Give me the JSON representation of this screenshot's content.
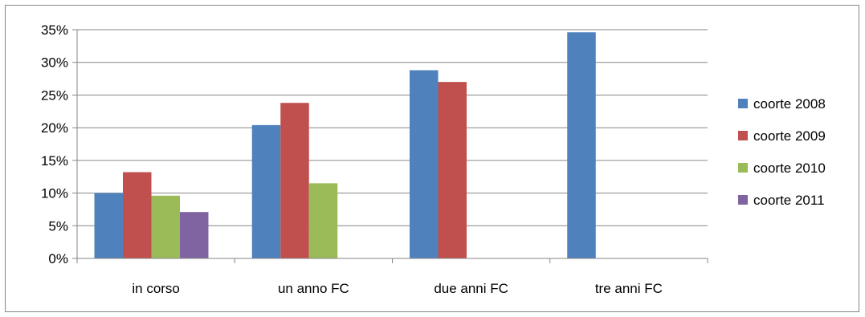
{
  "chart_data": {
    "type": "bar",
    "title": "",
    "xlabel": "",
    "ylabel": "",
    "categories": [
      "in corso",
      "un anno FC",
      "due anni FC",
      "tre anni FC"
    ],
    "series": [
      {
        "name": "coorte 2008",
        "color": "#4F81BD",
        "values": [
          10.0,
          20.4,
          28.8,
          34.6
        ]
      },
      {
        "name": "coorte 2009",
        "color": "#C0504D",
        "values": [
          13.2,
          23.8,
          27.0,
          null
        ]
      },
      {
        "name": "coorte 2010",
        "color": "#9BBB59",
        "values": [
          9.6,
          11.5,
          null,
          null
        ]
      },
      {
        "name": "coorte 2011",
        "color": "#8064A2",
        "values": [
          7.1,
          null,
          null,
          null
        ]
      }
    ],
    "ylim": [
      0,
      35
    ],
    "yticks": [
      0,
      5,
      10,
      15,
      20,
      25,
      30,
      35
    ],
    "ytick_labels": [
      "0%",
      "5%",
      "10%",
      "15%",
      "20%",
      "25%",
      "30%",
      "35%"
    ],
    "grid": true,
    "legend_position": "right"
  }
}
